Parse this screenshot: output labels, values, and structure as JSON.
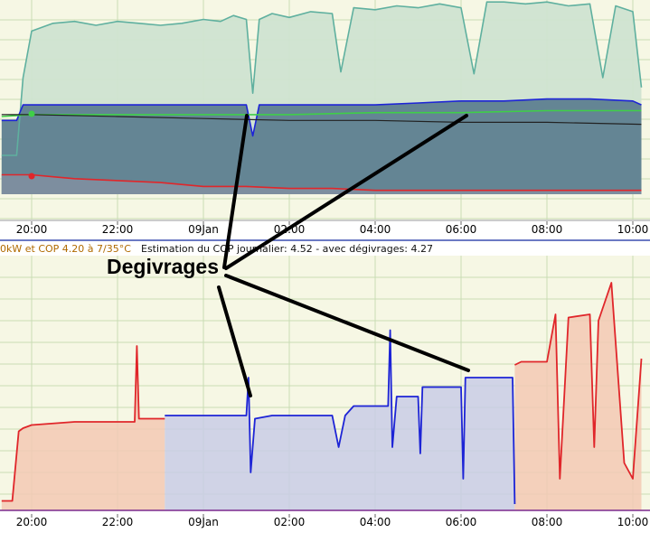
{
  "header": {
    "cop_text": "0kW et COP 4.20 à 7/35°C",
    "estimate_text": "Estimation du COP journalier: 4.52 - avec dégivrages: 4.27"
  },
  "annotation": {
    "label": "Degivrages"
  },
  "colors": {
    "panel_bg": "#f6f7e4",
    "grid": "#c9dcb4",
    "teal": "#5fb09f",
    "teal_fill": "#cfe3d1",
    "blue": "#1d24d6",
    "blue_fill": "#c9cde6",
    "dark_fill": "#5e7f90",
    "red": "#e0262a",
    "red_fill": "#f3c9b4",
    "green": "#3fcf48",
    "black": "#222222",
    "orange_text": "#b06a00"
  },
  "chart_data": [
    {
      "type": "area",
      "title": "",
      "xlabel": "",
      "ylabel": "",
      "x_ticks": [
        "20:00",
        "22:00",
        "09Jan",
        "02:00",
        "04:00",
        "06:00",
        "08:00",
        "10:00"
      ],
      "x_range_hours": [
        19.3,
        10.2
      ],
      "series": [
        {
          "color": "teal",
          "x": [
            19.3,
            19.65,
            19.8,
            20.0,
            20.5,
            21.0,
            21.5,
            22.0,
            22.5,
            23.0,
            23.5,
            0.0,
            0.4,
            0.7,
            1.0,
            1.15,
            1.3,
            1.6,
            2.0,
            2.5,
            3.0,
            3.2,
            3.5,
            4.0,
            4.5,
            5.0,
            5.5,
            6.0,
            6.3,
            6.6,
            7.0,
            7.5,
            8.0,
            8.5,
            9.0,
            9.3,
            9.6,
            10.0,
            10.2
          ],
          "y": [
            2.0,
            2.0,
            6.0,
            8.4,
            8.8,
            8.9,
            8.7,
            8.9,
            8.8,
            8.7,
            8.8,
            9.0,
            8.9,
            9.2,
            9.0,
            5.2,
            9.0,
            9.3,
            9.1,
            9.4,
            9.3,
            6.3,
            9.6,
            9.5,
            9.7,
            9.6,
            9.8,
            9.6,
            6.2,
            9.9,
            9.9,
            9.8,
            9.9,
            9.7,
            9.8,
            6.0,
            9.7,
            9.4,
            5.5
          ]
        },
        {
          "color": "blue",
          "x": [
            19.3,
            19.65,
            19.8,
            20.0,
            21.0,
            22.0,
            23.0,
            0.0,
            1.0,
            1.15,
            1.3,
            2.0,
            3.0,
            4.0,
            5.0,
            6.0,
            7.0,
            8.0,
            9.0,
            10.0,
            10.2
          ],
          "y": [
            3.8,
            3.8,
            4.6,
            4.6,
            4.6,
            4.6,
            4.6,
            4.6,
            4.6,
            3.0,
            4.6,
            4.6,
            4.6,
            4.6,
            4.7,
            4.8,
            4.8,
            4.9,
            4.9,
            4.8,
            4.6
          ]
        },
        {
          "color": "green",
          "x": [
            19.3,
            20.0,
            22.0,
            0.0,
            2.0,
            4.0,
            6.0,
            8.0,
            10.2
          ],
          "y": [
            4.0,
            4.1,
            4.1,
            4.1,
            4.1,
            4.2,
            4.2,
            4.3,
            4.3
          ]
        },
        {
          "color": "black",
          "x": [
            19.3,
            20.0,
            22.0,
            0.0,
            2.0,
            4.0,
            6.0,
            8.0,
            10.2
          ],
          "y": [
            4.1,
            4.1,
            4.0,
            3.9,
            3.8,
            3.8,
            3.7,
            3.7,
            3.6
          ]
        },
        {
          "color": "red",
          "x": [
            19.3,
            20.0,
            20.5,
            21.0,
            22.0,
            23.0,
            0.0,
            1.0,
            2.0,
            3.0,
            4.0,
            5.0,
            6.0,
            7.0,
            8.0,
            9.0,
            10.2
          ],
          "y": [
            1.0,
            1.0,
            0.9,
            0.8,
            0.7,
            0.6,
            0.4,
            0.4,
            0.3,
            0.3,
            0.2,
            0.2,
            0.2,
            0.2,
            0.2,
            0.2,
            0.2
          ]
        }
      ]
    },
    {
      "type": "area",
      "title": "",
      "xlabel": "",
      "ylabel": "",
      "x_ticks": [
        "20:00",
        "22:00",
        "09Jan",
        "02:00",
        "04:00",
        "06:00",
        "08:00",
        "10:00"
      ],
      "x_range_hours": [
        19.3,
        10.2
      ],
      "series": [
        {
          "color": "red",
          "x": [
            19.3,
            19.55,
            19.7,
            19.8,
            20.0,
            21.0,
            22.0,
            22.4,
            22.45,
            22.5,
            23.0,
            23.1
          ],
          "y": [
            0.3,
            0.3,
            2.5,
            2.6,
            2.7,
            2.8,
            2.8,
            2.8,
            5.2,
            2.9,
            2.9,
            2.9
          ]
        },
        {
          "color": "blue",
          "x": [
            23.1,
            23.5,
            0.0,
            0.5,
            1.0,
            1.05,
            1.1,
            1.2,
            1.6,
            2.0,
            2.5,
            3.0,
            3.15,
            3.3,
            3.5,
            4.0,
            4.3,
            4.35,
            4.4,
            4.5,
            5.0,
            5.05,
            5.1,
            5.5,
            6.0,
            6.05,
            6.1,
            6.5,
            6.9,
            7.0,
            7.2,
            7.25
          ],
          "y": [
            3.0,
            3.0,
            3.0,
            3.0,
            3.0,
            4.2,
            1.2,
            2.9,
            3.0,
            3.0,
            3.0,
            3.0,
            2.0,
            3.0,
            3.3,
            3.3,
            3.3,
            5.7,
            2.0,
            3.6,
            3.6,
            1.8,
            3.9,
            3.9,
            3.9,
            1.0,
            4.2,
            4.2,
            4.2,
            4.2,
            4.2,
            0.2
          ]
        },
        {
          "color": "red",
          "x": [
            7.25,
            7.4,
            7.6,
            8.0,
            8.2,
            8.3,
            8.5,
            9.0,
            9.1,
            9.2,
            9.5,
            9.8,
            10.0,
            10.2
          ],
          "y": [
            4.6,
            4.7,
            4.7,
            4.7,
            6.2,
            1.0,
            6.1,
            6.2,
            2.0,
            6.0,
            7.2,
            1.5,
            1.0,
            4.8
          ]
        }
      ]
    }
  ]
}
